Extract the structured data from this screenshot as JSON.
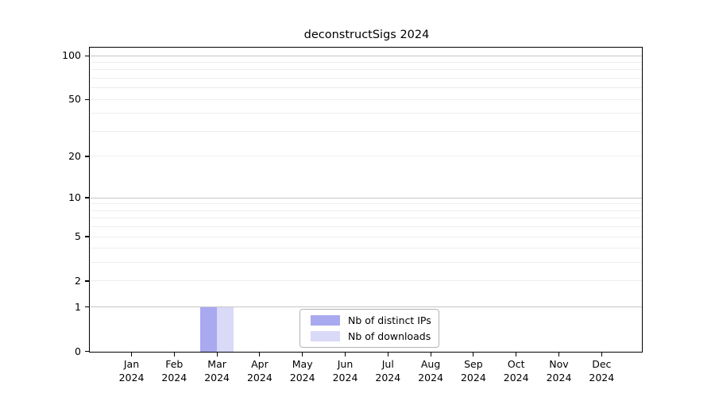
{
  "figure": {
    "title": "deconstructSigs 2024"
  },
  "chart_data": {
    "type": "bar",
    "title": "deconstructSigs 2024",
    "x_axis": {
      "categories": [
        "Jan",
        "Feb",
        "Mar",
        "Apr",
        "May",
        "Jun",
        "Jul",
        "Aug",
        "Sep",
        "Oct",
        "Nov",
        "Dec"
      ],
      "year_label": "2024"
    },
    "y_axis": {
      "scale": "log10(value+1)",
      "labeled_ticks": [
        0,
        1,
        2,
        5,
        10,
        20,
        50,
        100
      ],
      "major_gridlines": [
        1,
        10,
        100
      ],
      "minor_gridlines": [
        2,
        3,
        4,
        5,
        6,
        7,
        8,
        9,
        20,
        30,
        40,
        50,
        60,
        70,
        80,
        90
      ],
      "range": [
        0,
        113
      ]
    },
    "series": [
      {
        "name": "Nb of distinct IPs",
        "color": "#a9a9ef",
        "values": [
          0,
          0,
          1,
          0,
          0,
          0,
          0,
          0,
          0,
          0,
          0,
          0
        ]
      },
      {
        "name": "Nb of downloads",
        "color": "#d9d9f8",
        "values": [
          0,
          0,
          1,
          0,
          0,
          0,
          0,
          0,
          0,
          0,
          0,
          0
        ]
      }
    ],
    "grid": true,
    "legend_position": "bottom-center-inside"
  },
  "colors": {
    "axis": "#000000",
    "major_grid": "#c6c6c6",
    "minor_grid": "#ededed",
    "background": "#ffffff"
  }
}
